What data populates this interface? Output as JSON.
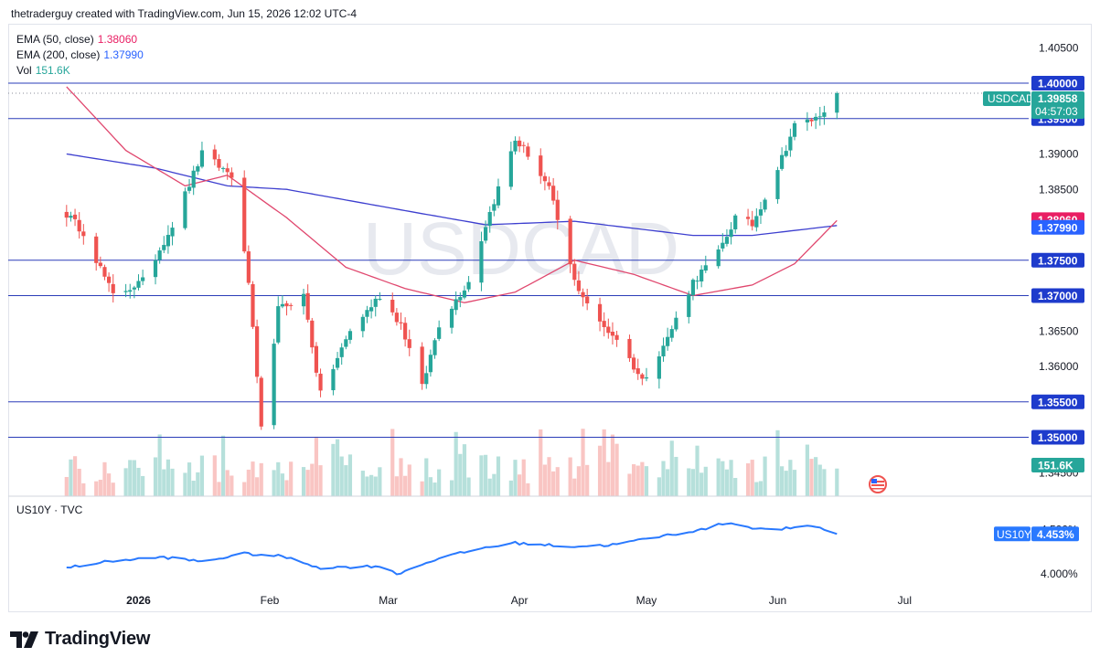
{
  "header": {
    "text": "thetraderguy created with TradingView.com, Jun 15, 2026 12:02 UTC-4"
  },
  "watermark": "USDCAD",
  "legend": {
    "ema50": {
      "label": "EMA (50, close)",
      "value": "1.38060",
      "color": "#e91e63"
    },
    "ema200": {
      "label": "EMA (200, close)",
      "value": "1.37990",
      "color": "#2962ff"
    },
    "vol": {
      "label": "Vol",
      "value": "151.6K"
    }
  },
  "colors": {
    "up": "#26a69a",
    "down": "#ef5350",
    "level": "#2a3cb8",
    "ema50": "#e0476e",
    "ema200": "#3d3fcf",
    "us10y": "#2979ff",
    "vol_up": "#b6e0db",
    "vol_down": "#f9c5c3"
  },
  "price_axis": {
    "ticks": [
      "1.40500",
      "1.39000",
      "1.38500",
      "1.36500",
      "1.36000",
      "1.34500"
    ],
    "level_labels": [
      "1.40000",
      "1.39500",
      "1.37500",
      "1.37000",
      "1.35500",
      "1.35000"
    ],
    "current": {
      "symbol": "USDCAD",
      "price": "1.39858",
      "countdown": "04:57:03"
    },
    "ema50_tag": "1.38060",
    "ema200_tag": "1.37990",
    "vol_tag": "151.6K"
  },
  "lower_pane": {
    "title": "US10Y · TVC",
    "ticks": [
      "4.500%",
      "4.000%"
    ],
    "tag_symbol": "US10Y",
    "tag_value": "4.453%"
  },
  "time_axis": {
    "labels": [
      "2026",
      "Feb",
      "Mar",
      "Apr",
      "May",
      "Jun",
      "Jul"
    ]
  },
  "logo": {
    "text": "TradingView"
  },
  "chart_data": {
    "type": "candlestick",
    "symbol": "USDCAD",
    "levels": [
      1.4,
      1.395,
      1.375,
      1.37,
      1.355,
      1.35
    ],
    "ylim": [
      1.3427,
      1.4088
    ],
    "ohlc_waypoints": [
      [
        "2025-12-15",
        1.3815
      ],
      [
        "2025-12-19",
        1.379
      ],
      [
        "2025-12-26",
        1.37
      ],
      [
        "2026-01-02",
        1.372
      ],
      [
        "2026-01-09",
        1.38
      ],
      [
        "2026-01-16",
        1.39
      ],
      [
        "2026-01-23",
        1.387
      ],
      [
        "2026-01-27",
        1.372
      ],
      [
        "2026-01-30",
        1.351
      ],
      [
        "2026-02-03",
        1.368
      ],
      [
        "2026-02-09",
        1.37
      ],
      [
        "2026-02-13",
        1.356
      ],
      [
        "2026-02-20",
        1.365
      ],
      [
        "2026-02-27",
        1.37
      ],
      [
        "2026-03-04",
        1.366
      ],
      [
        "2026-03-09",
        1.357
      ],
      [
        "2026-03-13",
        1.366
      ],
      [
        "2026-03-20",
        1.372
      ],
      [
        "2026-03-24",
        1.38
      ],
      [
        "2026-03-31",
        1.392
      ],
      [
        "2026-04-03",
        1.39
      ],
      [
        "2026-04-08",
        1.385
      ],
      [
        "2026-04-14",
        1.372
      ],
      [
        "2026-04-20",
        1.366
      ],
      [
        "2026-04-24",
        1.364
      ],
      [
        "2026-04-30",
        1.358
      ],
      [
        "2026-05-06",
        1.364
      ],
      [
        "2026-05-12",
        1.372
      ],
      [
        "2026-05-18",
        1.376
      ],
      [
        "2026-05-22",
        1.381
      ],
      [
        "2026-05-26",
        1.38
      ],
      [
        "2026-06-01",
        1.388
      ],
      [
        "2026-06-05",
        1.394
      ],
      [
        "2026-06-10",
        1.395
      ],
      [
        "2026-06-15",
        1.3986
      ]
    ],
    "ema50_waypoints": [
      [
        "2025-12-15",
        1.3995
      ],
      [
        "2025-12-29",
        1.3905
      ],
      [
        "2026-01-12",
        1.3855
      ],
      [
        "2026-01-22",
        1.387
      ],
      [
        "2026-02-05",
        1.381
      ],
      [
        "2026-02-19",
        1.374
      ],
      [
        "2026-03-05",
        1.371
      ],
      [
        "2026-03-19",
        1.369
      ],
      [
        "2026-03-31",
        1.3705
      ],
      [
        "2026-04-14",
        1.375
      ],
      [
        "2026-04-28",
        1.373
      ],
      [
        "2026-05-12",
        1.37
      ],
      [
        "2026-05-26",
        1.3715
      ],
      [
        "2026-06-05",
        1.3745
      ],
      [
        "2026-06-15",
        1.3806
      ]
    ],
    "ema200_waypoints": [
      [
        "2025-12-15",
        1.39
      ],
      [
        "2026-01-05",
        1.388
      ],
      [
        "2026-01-22",
        1.3855
      ],
      [
        "2026-02-05",
        1.385
      ],
      [
        "2026-03-05",
        1.382
      ],
      [
        "2026-03-24",
        1.38
      ],
      [
        "2026-04-14",
        1.3805
      ],
      [
        "2026-05-12",
        1.3785
      ],
      [
        "2026-05-26",
        1.3785
      ],
      [
        "2026-06-15",
        1.3799
      ]
    ],
    "volume": {
      "last": "151.6K"
    },
    "us10y": {
      "unit": "%",
      "ylim": [
        3.96,
        4.58
      ],
      "waypoints": [
        [
          "2025-12-15",
          4.07
        ],
        [
          "2025-12-26",
          4.15
        ],
        [
          "2026-01-07",
          4.19
        ],
        [
          "2026-01-16",
          4.14
        ],
        [
          "2026-01-26",
          4.23
        ],
        [
          "2026-02-04",
          4.2
        ],
        [
          "2026-02-13",
          4.07
        ],
        [
          "2026-02-27",
          4.09
        ],
        [
          "2026-03-03",
          4.0
        ],
        [
          "2026-03-13",
          4.18
        ],
        [
          "2026-03-24",
          4.3
        ],
        [
          "2026-03-31",
          4.35
        ],
        [
          "2026-04-14",
          4.31
        ],
        [
          "2026-04-23",
          4.33
        ],
        [
          "2026-05-06",
          4.44
        ],
        [
          "2026-05-14",
          4.5
        ],
        [
          "2026-05-20",
          4.58
        ],
        [
          "2026-05-29",
          4.5
        ],
        [
          "2026-06-05",
          4.52
        ],
        [
          "2026-06-10",
          4.54
        ],
        [
          "2026-06-15",
          4.453
        ]
      ]
    }
  }
}
